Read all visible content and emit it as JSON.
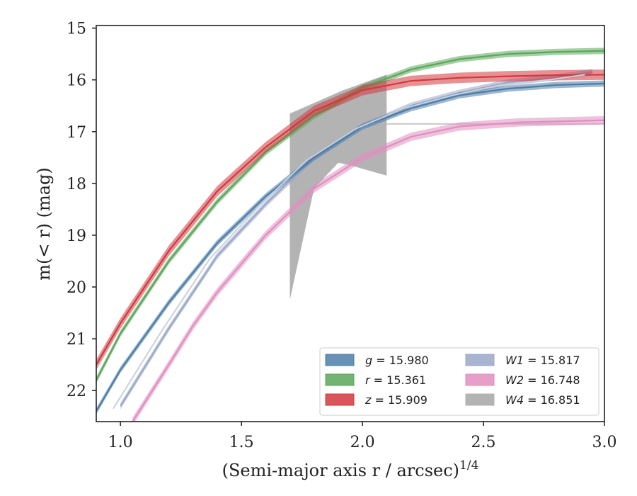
{
  "chart_data": {
    "type": "line",
    "xlabel": "(Semi-major axis r / arcsec)",
    "xlabel_sup": "1/4",
    "ylabel": "m(< r) (mag)",
    "xlim": [
      0.9,
      3.0
    ],
    "ylim": [
      22.6,
      14.95
    ],
    "y_inverted": true,
    "grid": false,
    "legend_position": "lower-right",
    "legend_columns": 2,
    "xticks": [
      1.0,
      1.5,
      2.0,
      2.5,
      3.0
    ],
    "xtick_labels": [
      "1.0",
      "1.5",
      "2.0",
      "2.5",
      "3.0"
    ],
    "yticks": [
      15,
      16,
      17,
      18,
      19,
      20,
      21,
      22
    ],
    "ytick_labels": [
      "15",
      "16",
      "17",
      "18",
      "19",
      "20",
      "21",
      "22"
    ],
    "series": [
      {
        "name": "g",
        "label_value": "15.980",
        "color": "#4c7ea8",
        "band": 0.06,
        "x": [
          0.9,
          1.0,
          1.2,
          1.4,
          1.6,
          1.8,
          2.0,
          2.2,
          2.4,
          2.6,
          2.8,
          3.0
        ],
        "y": [
          22.4,
          21.6,
          20.3,
          19.15,
          18.25,
          17.5,
          16.9,
          16.55,
          16.3,
          16.17,
          16.1,
          16.07
        ]
      },
      {
        "name": "r",
        "label_value": "15.361",
        "color": "#5aa75a",
        "band": 0.06,
        "x": [
          0.9,
          1.0,
          1.2,
          1.4,
          1.6,
          1.8,
          2.0,
          2.2,
          2.4,
          2.6,
          2.8,
          3.0
        ],
        "y": [
          21.8,
          20.9,
          19.5,
          18.35,
          17.4,
          16.7,
          16.15,
          15.8,
          15.6,
          15.5,
          15.46,
          15.44
        ]
      },
      {
        "name": "z",
        "label_value": "15.909",
        "color": "#d2383e",
        "band": 0.1,
        "x": [
          0.9,
          1.0,
          1.2,
          1.4,
          1.6,
          1.8,
          2.0,
          2.2,
          2.4,
          2.6,
          2.8,
          3.0
        ],
        "y": [
          21.5,
          20.7,
          19.3,
          18.15,
          17.3,
          16.6,
          16.2,
          16.02,
          15.96,
          15.93,
          15.91,
          15.9
        ]
      },
      {
        "name": "W1",
        "label_value": "15.817",
        "color": "#9aa8c8",
        "band": 0.06,
        "x": [
          1.0,
          1.2,
          1.4,
          1.6,
          1.8,
          2.0,
          2.2,
          2.4,
          2.6,
          2.8,
          2.95
        ],
        "y": [
          22.3,
          20.8,
          19.4,
          18.4,
          17.5,
          16.9,
          16.5,
          16.25,
          16.05,
          15.95,
          15.85
        ]
      },
      {
        "name": "W2",
        "label_value": "16.748",
        "color": "#e08ec0",
        "band": 0.08,
        "x": [
          1.05,
          1.2,
          1.3,
          1.4,
          1.5,
          1.6,
          1.8,
          2.0,
          2.2,
          2.4,
          2.65,
          3.0
        ],
        "y": [
          22.6,
          21.5,
          20.75,
          20.1,
          19.55,
          19.0,
          18.1,
          17.5,
          17.1,
          16.9,
          16.82,
          16.78
        ]
      },
      {
        "name": "W4",
        "label_value": "16.851",
        "color": "#b3b3b3",
        "x": [
          1.9,
          3.0
        ],
        "y": [
          16.85,
          16.85
        ],
        "band_upper_x": [
          1.7,
          1.92,
          2.1
        ],
        "band_upper_y": [
          16.65,
          16.2,
          15.9
        ],
        "band_lower_x": [
          1.7,
          1.8,
          1.9,
          1.95,
          2.1
        ],
        "band_lower_y": [
          20.25,
          18.1,
          17.6,
          17.65,
          17.85
        ]
      }
    ]
  }
}
